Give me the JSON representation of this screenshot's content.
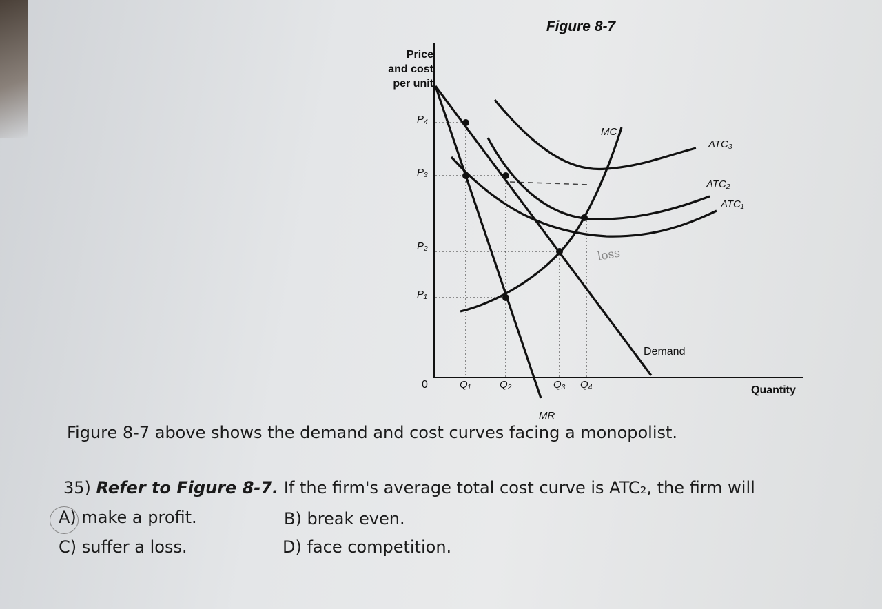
{
  "figure": {
    "title": "Figure 8-7",
    "y_axis_label": [
      "Price",
      "and cost",
      "per unit"
    ],
    "y_labels": [
      "P₄",
      "P₃",
      "P₂",
      "P₁"
    ],
    "origin": "0",
    "x_labels": [
      "Q₁",
      "Q₂",
      "Q₃",
      "Q₄"
    ],
    "x_axis_label": "Quantity",
    "curves": {
      "mc": "MC",
      "atc3": "ATC₃",
      "atc2": "ATC₂",
      "atc1": "ATC₁",
      "demand": "Demand",
      "mr": "MR"
    },
    "annotation": "loss"
  },
  "caption": "Figure 8-7 above shows the demand and cost curves facing a monopolist.",
  "question": {
    "number": "35)",
    "reference": "Refer to Figure 8-7.",
    "text": "If the firm's average total cost curve is ATC₂, the firm will",
    "options": [
      "A) make a profit.",
      "B) break even.",
      "C) suffer a loss.",
      "D) face competition."
    ]
  }
}
